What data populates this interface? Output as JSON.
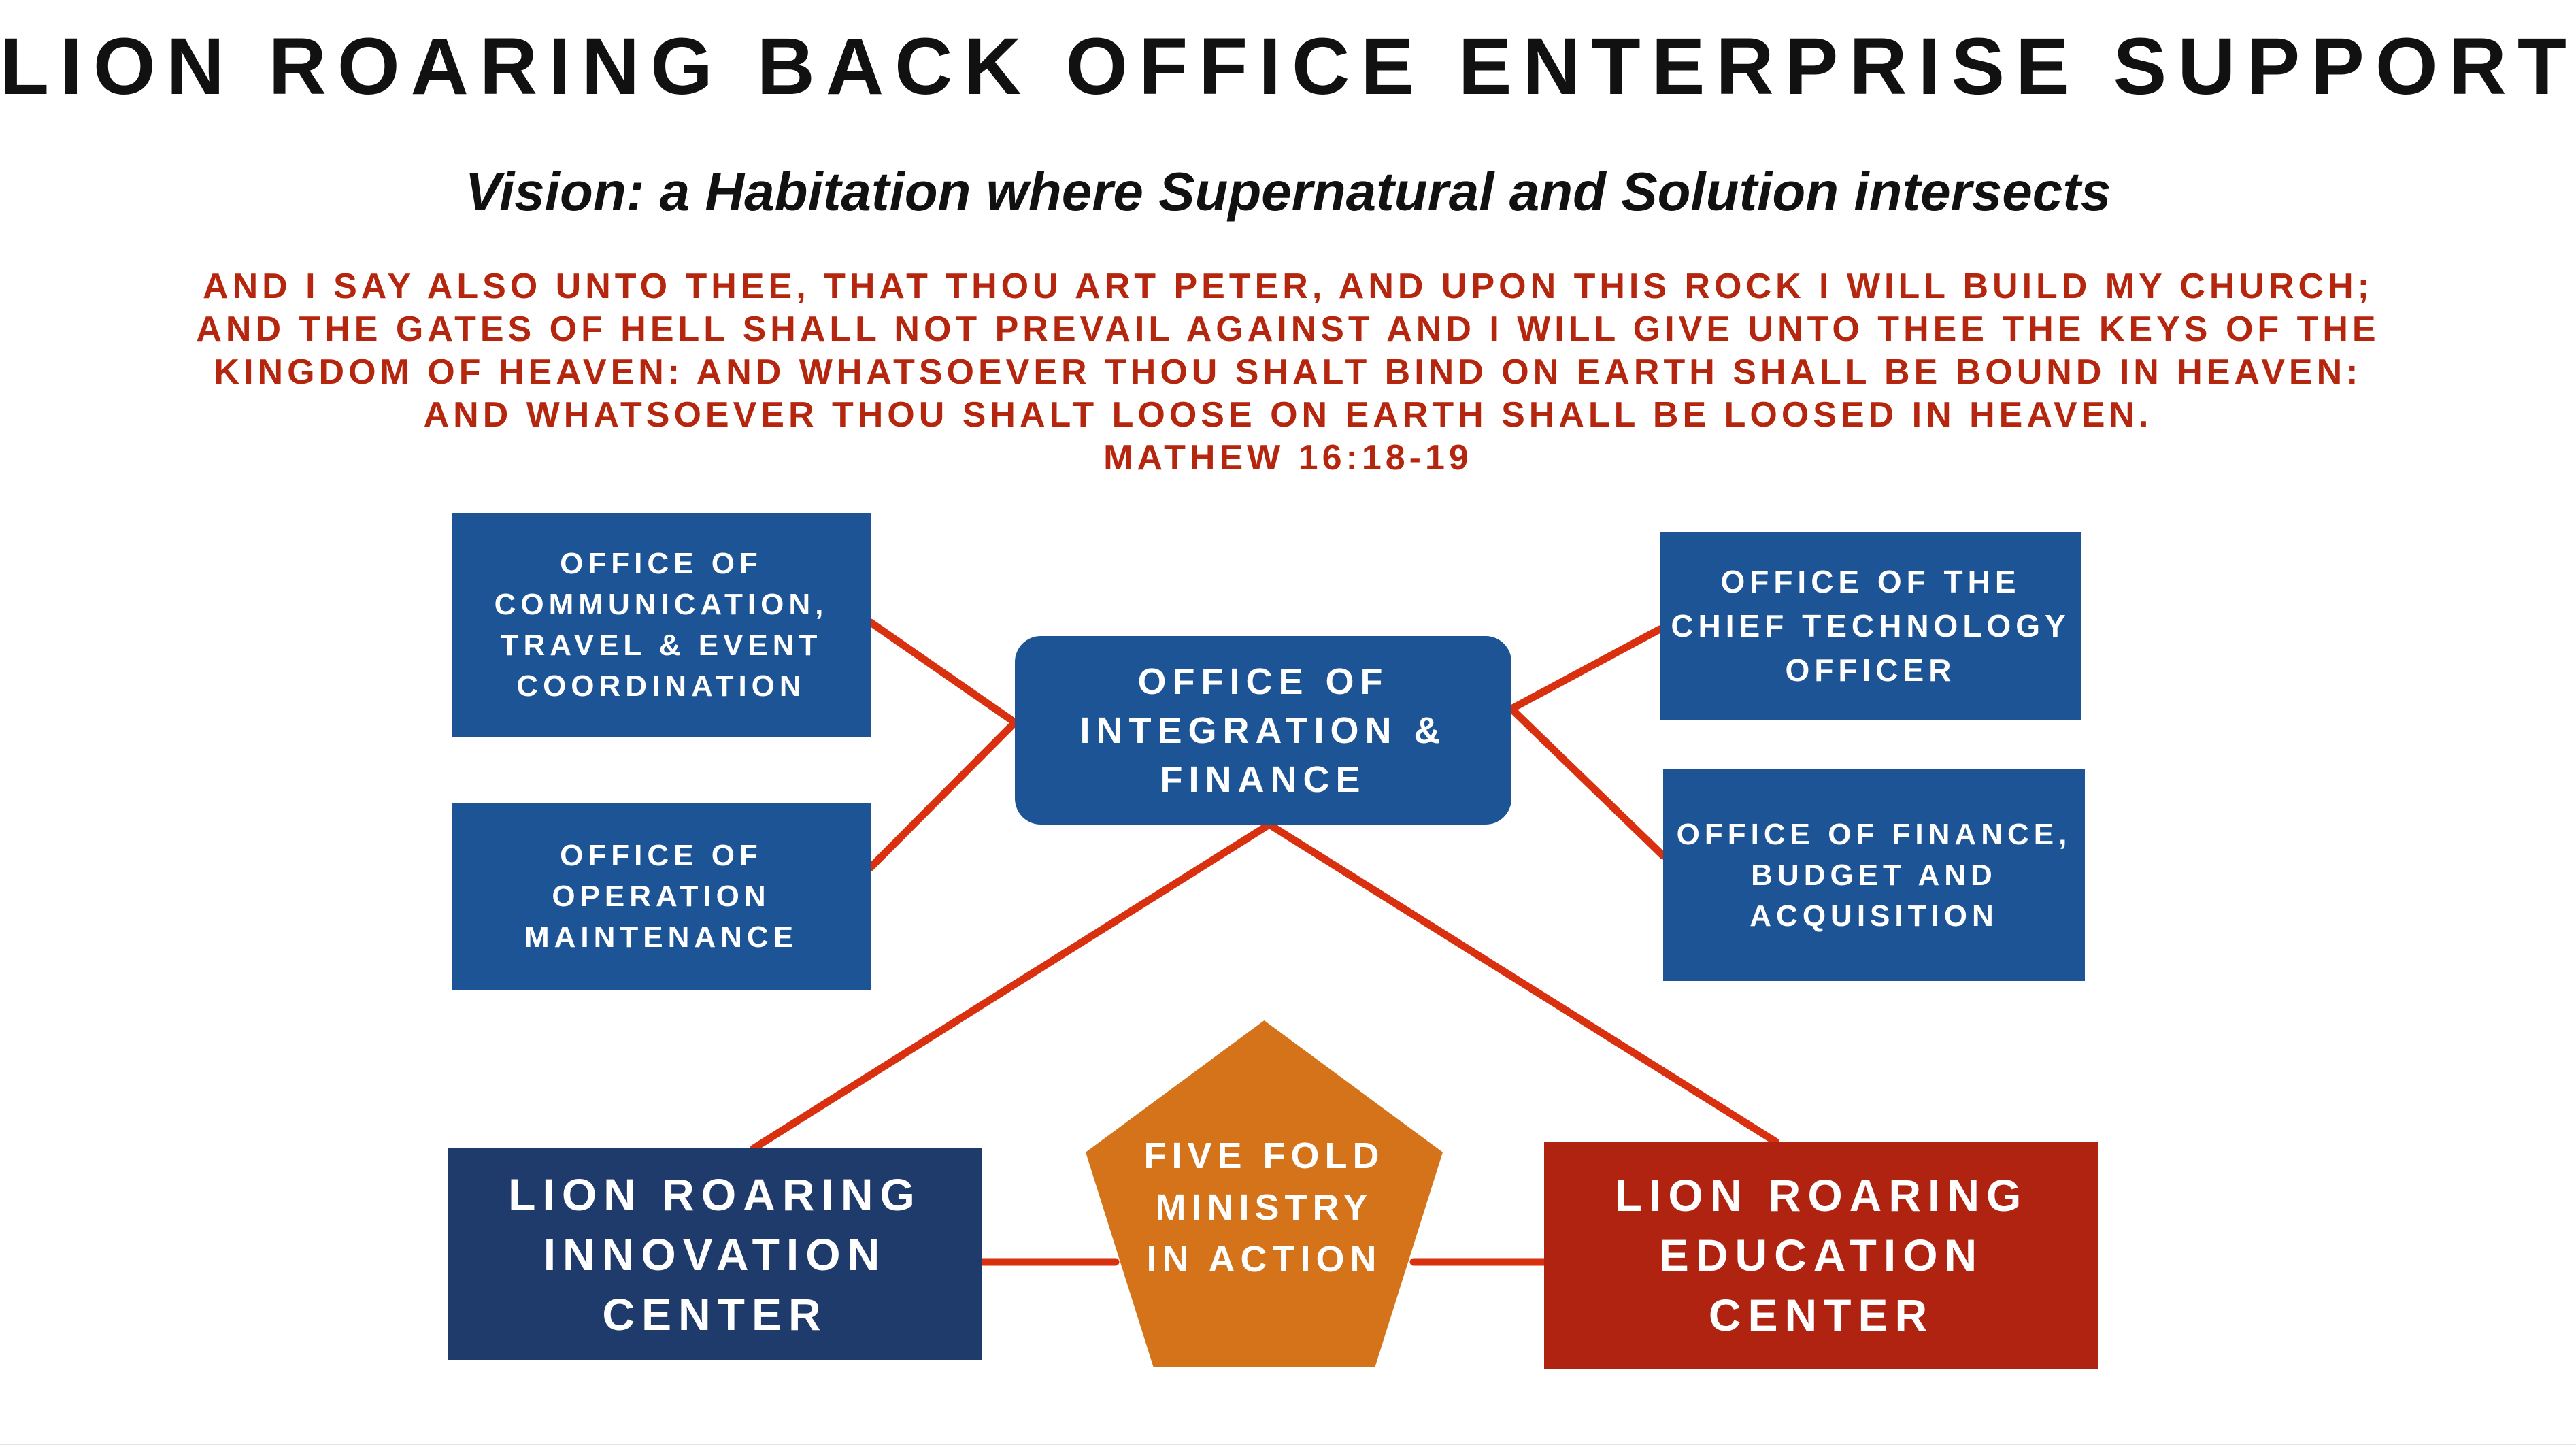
{
  "title": "LION ROARING BACK OFFICE ENTERPRISE SUPPORT",
  "subtitle": "Vision: a Habitation where Supernatural and Solution intersects",
  "scripture": {
    "lines": [
      "AND I SAY ALSO UNTO THEE, THAT THOU ART PETER, AND UPON THIS ROCK I WILL BUILD MY CHURCH;",
      "AND THE GATES OF HELL SHALL NOT PREVAIL AGAINST AND I WILL GIVE UNTO THEE THE KEYS OF THE",
      "KINGDOM OF HEAVEN: AND WHATSOEVER THOU SHALT BIND ON EARTH SHALL BE BOUND IN HEAVEN:",
      "AND WHATSOEVER THOU SHALT LOOSE ON EARTH SHALL BE LOOSED IN HEAVEN."
    ],
    "reference": "MATHEW 16:18-19"
  },
  "nodes": {
    "communication": [
      "OFFICE OF",
      "COMMUNICATION,",
      "TRAVEL & EVENT",
      "COORDINATION"
    ],
    "operation": [
      "OFFICE OF",
      "OPERATION",
      "MAINTENANCE"
    ],
    "integration": [
      "OFFICE OF",
      "INTEGRATION &",
      "FINANCE"
    ],
    "cto": [
      "OFFICE OF THE",
      "CHIEF TECHNOLOGY",
      "OFFICER"
    ],
    "finance": [
      "OFFICE OF FINANCE,",
      "BUDGET AND",
      "ACQUISITION"
    ],
    "innovation": [
      "LION ROARING",
      "INNOVATION",
      "CENTER"
    ],
    "fivefold": [
      "FIVE FOLD",
      "MINISTRY",
      "IN ACTION"
    ],
    "education": [
      "LION ROARING",
      "EDUCATION",
      "CENTER"
    ]
  },
  "colors": {
    "office_blue": "#1d5496",
    "innovation_navy": "#1f3b6b",
    "education_red": "#b02310",
    "fivefold_orange": "#d4731a",
    "connector_red": "#d9300f",
    "scripture_red": "#b5260f"
  }
}
